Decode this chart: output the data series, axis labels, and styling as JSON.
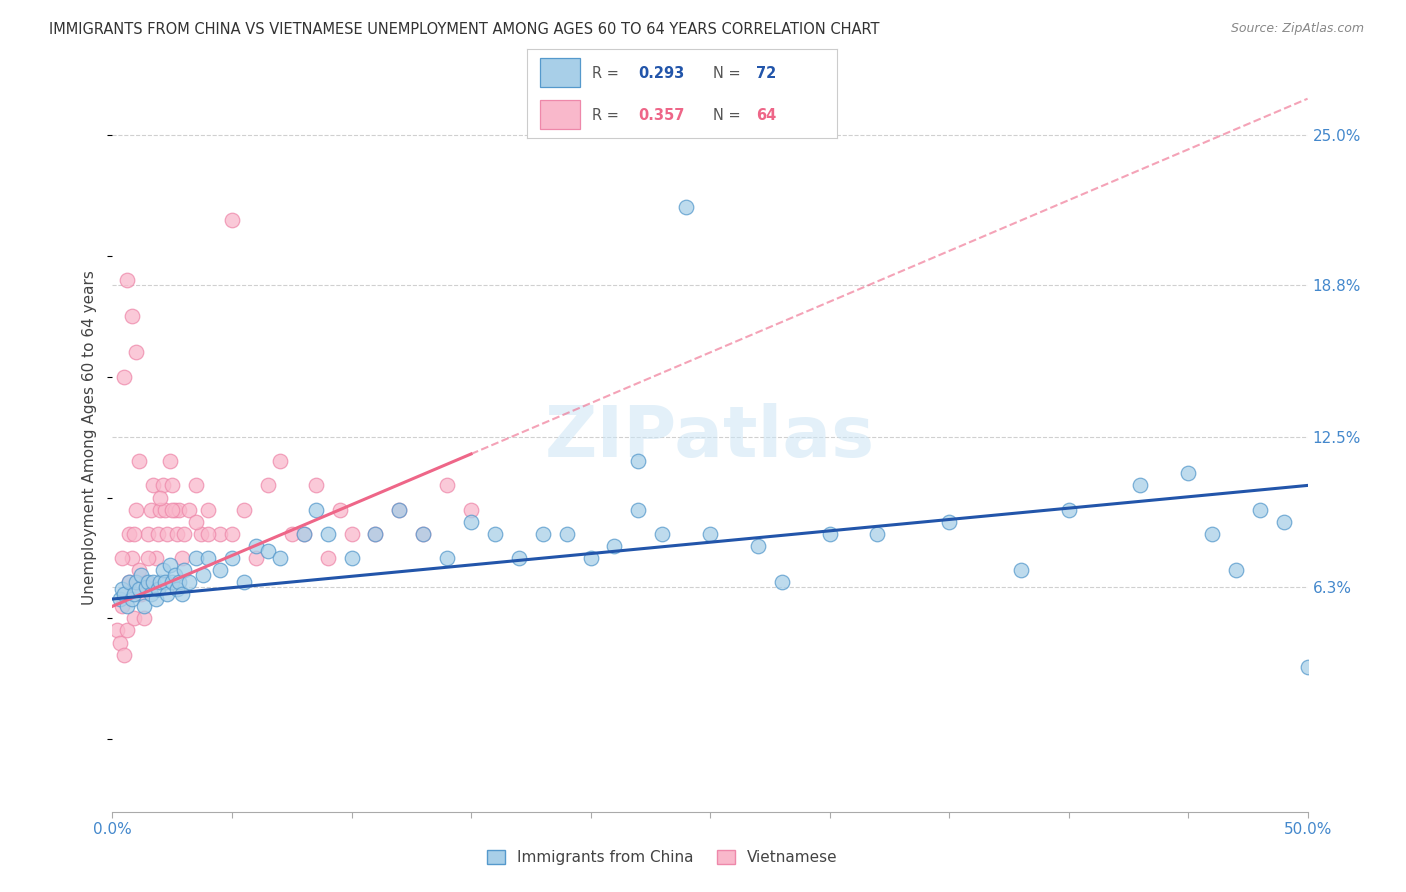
{
  "title": "IMMIGRANTS FROM CHINA VS VIETNAMESE UNEMPLOYMENT AMONG AGES 60 TO 64 YEARS CORRELATION CHART",
  "source": "Source: ZipAtlas.com",
  "ylabel": "Unemployment Among Ages 60 to 64 years",
  "ytick_labels": [
    "6.3%",
    "12.5%",
    "18.8%",
    "25.0%"
  ],
  "ytick_values": [
    6.3,
    12.5,
    18.8,
    25.0
  ],
  "xlim": [
    0.0,
    50.0
  ],
  "ylim": [
    -3.0,
    28.0
  ],
  "color_china_fill": "#a8cfe8",
  "color_china_edge": "#5599cc",
  "color_china_line": "#2255aa",
  "color_viet_fill": "#f9b8cb",
  "color_viet_edge": "#ee88aa",
  "color_viet_line": "#ee6688",
  "viet_line_start_x": 0.0,
  "viet_line_start_y": 5.5,
  "viet_line_end_x": 50.0,
  "viet_line_end_y": 26.5,
  "viet_line_dashed_from_x": 15.0,
  "china_line_start_x": 0.0,
  "china_line_start_y": 5.8,
  "china_line_end_x": 50.0,
  "china_line_end_y": 10.5,
  "china_x": [
    0.3,
    0.4,
    0.5,
    0.6,
    0.7,
    0.8,
    0.9,
    1.0,
    1.1,
    1.2,
    1.3,
    1.4,
    1.5,
    1.6,
    1.7,
    1.8,
    1.9,
    2.0,
    2.1,
    2.2,
    2.3,
    2.4,
    2.5,
    2.6,
    2.7,
    2.8,
    2.9,
    3.0,
    3.2,
    3.5,
    3.8,
    4.0,
    4.5,
    5.0,
    5.5,
    6.0,
    6.5,
    7.0,
    8.0,
    8.5,
    9.0,
    10.0,
    11.0,
    12.0,
    13.0,
    14.0,
    15.0,
    16.0,
    17.0,
    18.0,
    19.0,
    20.0,
    21.0,
    22.0,
    23.0,
    25.0,
    27.0,
    30.0,
    32.0,
    35.0,
    38.0,
    40.0,
    43.0,
    45.0,
    46.0,
    47.0,
    48.0,
    49.0,
    50.0,
    22.0,
    28.0,
    24.0
  ],
  "china_y": [
    5.8,
    6.2,
    6.0,
    5.5,
    6.5,
    5.8,
    6.0,
    6.5,
    6.2,
    6.8,
    5.5,
    6.3,
    6.5,
    6.0,
    6.5,
    5.8,
    6.2,
    6.5,
    7.0,
    6.5,
    6.0,
    7.2,
    6.5,
    6.8,
    6.2,
    6.5,
    6.0,
    7.0,
    6.5,
    7.5,
    6.8,
    7.5,
    7.0,
    7.5,
    6.5,
    8.0,
    7.8,
    7.5,
    8.5,
    9.5,
    8.5,
    7.5,
    8.5,
    9.5,
    8.5,
    7.5,
    9.0,
    8.5,
    7.5,
    8.5,
    8.5,
    7.5,
    8.0,
    9.5,
    8.5,
    8.5,
    8.0,
    8.5,
    8.5,
    9.0,
    7.0,
    9.5,
    10.5,
    11.0,
    8.5,
    7.0,
    9.5,
    9.0,
    3.0,
    11.5,
    6.5,
    22.0
  ],
  "viet_x": [
    0.2,
    0.3,
    0.4,
    0.5,
    0.6,
    0.7,
    0.8,
    0.9,
    1.0,
    1.1,
    1.2,
    1.3,
    1.4,
    1.5,
    1.6,
    1.7,
    1.8,
    1.9,
    2.0,
    2.1,
    2.2,
    2.3,
    2.4,
    2.5,
    2.6,
    2.7,
    2.8,
    2.9,
    3.0,
    3.2,
    3.5,
    3.7,
    4.0,
    4.5,
    5.0,
    5.5,
    6.0,
    6.5,
    7.0,
    7.5,
    8.0,
    8.5,
    9.0,
    9.5,
    10.0,
    11.0,
    12.0,
    13.0,
    14.0,
    15.0,
    5.0,
    4.0,
    3.5,
    2.5,
    2.0,
    1.5,
    1.0,
    0.8,
    0.6,
    0.5,
    0.4,
    0.7,
    0.9,
    1.1
  ],
  "viet_y": [
    4.5,
    4.0,
    5.5,
    3.5,
    4.5,
    6.5,
    7.5,
    5.0,
    9.5,
    11.5,
    6.0,
    5.0,
    6.5,
    8.5,
    9.5,
    10.5,
    7.5,
    8.5,
    9.5,
    10.5,
    9.5,
    8.5,
    11.5,
    10.5,
    9.5,
    8.5,
    9.5,
    7.5,
    8.5,
    9.5,
    10.5,
    8.5,
    9.5,
    8.5,
    21.5,
    9.5,
    7.5,
    10.5,
    11.5,
    8.5,
    8.5,
    10.5,
    7.5,
    9.5,
    8.5,
    8.5,
    9.5,
    8.5,
    10.5,
    9.5,
    8.5,
    8.5,
    9.0,
    9.5,
    10.0,
    7.5,
    16.0,
    17.5,
    19.0,
    15.0,
    7.5,
    8.5,
    8.5,
    7.0
  ]
}
